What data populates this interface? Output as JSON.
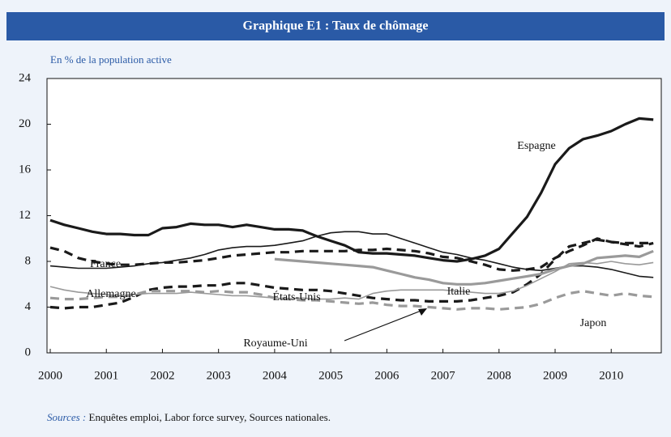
{
  "chart_data": {
    "type": "line",
    "title": "Graphique E1 : Taux de chômage",
    "subtitle": "En % de la population active",
    "source_label": "Sources :",
    "source": "Enquêtes emploi, Labor force survey, Sources nationales.",
    "x": [
      2000,
      2000.25,
      2000.5,
      2000.75,
      2001,
      2001.25,
      2001.5,
      2001.75,
      2002,
      2002.25,
      2002.5,
      2002.75,
      2003,
      2003.25,
      2003.5,
      2003.75,
      2004,
      2004.25,
      2004.5,
      2004.75,
      2005,
      2005.25,
      2005.5,
      2005.75,
      2006,
      2006.25,
      2006.5,
      2006.75,
      2007,
      2007.25,
      2007.5,
      2007.75,
      2008,
      2008.25,
      2008.5,
      2008.75,
      2009,
      2009.25,
      2009.5,
      2009.75,
      2010,
      2010.25,
      2010.5,
      2010.75
    ],
    "xlim": [
      2000,
      2010.95
    ],
    "xticks": [
      2000,
      2001,
      2002,
      2003,
      2004,
      2005,
      2006,
      2007,
      2008,
      2009,
      2010
    ],
    "ylim": [
      0,
      24
    ],
    "yticks": [
      0,
      4,
      8,
      12,
      16,
      20,
      24
    ],
    "grid": false,
    "series": [
      {
        "name": "Espagne",
        "color": "#1a1a1a",
        "thick": true,
        "dashed": false,
        "values": [
          11.6,
          11.2,
          10.9,
          10.6,
          10.4,
          10.4,
          10.3,
          10.3,
          10.9,
          11.0,
          11.3,
          11.2,
          11.2,
          11.0,
          11.2,
          11.0,
          10.8,
          10.8,
          10.7,
          10.2,
          9.8,
          9.4,
          8.8,
          8.7,
          8.7,
          8.6,
          8.5,
          8.3,
          8.1,
          8.0,
          8.2,
          8.5,
          9.1,
          10.5,
          11.9,
          14.0,
          16.5,
          17.9,
          18.7,
          19.0,
          19.4,
          20.0,
          20.5,
          20.4
        ]
      },
      {
        "name": "France",
        "color": "#1a1a1a",
        "thick": true,
        "dashed": true,
        "values": [
          9.2,
          8.9,
          8.3,
          8.0,
          7.8,
          7.7,
          7.7,
          7.8,
          7.9,
          7.9,
          8.0,
          8.1,
          8.3,
          8.5,
          8.6,
          8.7,
          8.8,
          8.8,
          8.9,
          8.9,
          8.9,
          8.9,
          9.0,
          9.0,
          9.1,
          9.0,
          8.9,
          8.7,
          8.4,
          8.3,
          8.0,
          7.7,
          7.3,
          7.2,
          7.3,
          7.5,
          8.3,
          8.9,
          9.4,
          10.0,
          9.7,
          9.5,
          9.3,
          9.6
        ]
      },
      {
        "name": "Allemagne",
        "color": "#1a1a1a",
        "thick": false,
        "dashed": false,
        "values": [
          7.6,
          7.5,
          7.4,
          7.4,
          7.4,
          7.5,
          7.6,
          7.8,
          7.9,
          8.1,
          8.3,
          8.6,
          9.0,
          9.2,
          9.3,
          9.3,
          9.4,
          9.6,
          9.8,
          10.2,
          10.5,
          10.6,
          10.6,
          10.4,
          10.4,
          10.0,
          9.6,
          9.2,
          8.8,
          8.6,
          8.3,
          8.1,
          7.8,
          7.5,
          7.3,
          7.2,
          7.4,
          7.6,
          7.6,
          7.5,
          7.3,
          7.0,
          6.7,
          6.6
        ]
      },
      {
        "name": "États-Unis",
        "color": "#1a1a1a",
        "thick": true,
        "dashed": true,
        "values": [
          4.0,
          3.9,
          4.0,
          4.0,
          4.2,
          4.4,
          4.9,
          5.5,
          5.7,
          5.8,
          5.8,
          5.9,
          5.9,
          6.1,
          6.1,
          5.9,
          5.7,
          5.6,
          5.5,
          5.5,
          5.4,
          5.2,
          5.0,
          4.8,
          4.7,
          4.6,
          4.6,
          4.5,
          4.5,
          4.5,
          4.6,
          4.8,
          5.0,
          5.3,
          6.0,
          6.9,
          8.2,
          9.3,
          9.6,
          9.9,
          9.7,
          9.6,
          9.6,
          9.6
        ]
      },
      {
        "name": "Italie",
        "color": "#9a9a9a",
        "thick": true,
        "dashed": false,
        "values": [
          null,
          null,
          null,
          null,
          null,
          null,
          null,
          null,
          null,
          null,
          null,
          null,
          null,
          null,
          null,
          null,
          8.2,
          8.1,
          8.0,
          7.9,
          7.8,
          7.7,
          7.6,
          7.5,
          7.2,
          6.9,
          6.6,
          6.4,
          6.1,
          6.0,
          6.0,
          6.1,
          6.3,
          6.5,
          6.7,
          6.9,
          7.3,
          7.6,
          7.8,
          8.3,
          8.4,
          8.5,
          8.4,
          8.9
        ]
      },
      {
        "name": "Royaume-Uni",
        "color": "#9a9a9a",
        "thick": false,
        "dashed": false,
        "values": [
          5.8,
          5.5,
          5.3,
          5.2,
          5.1,
          5.0,
          5.1,
          5.2,
          5.2,
          5.2,
          5.3,
          5.2,
          5.1,
          5.0,
          5.0,
          4.9,
          4.8,
          4.7,
          4.8,
          4.7,
          4.7,
          4.8,
          4.7,
          5.2,
          5.4,
          5.5,
          5.5,
          5.5,
          5.5,
          5.4,
          5.3,
          5.2,
          5.2,
          5.4,
          5.9,
          6.5,
          7.1,
          7.8,
          7.9,
          7.8,
          8.0,
          7.8,
          7.7,
          7.9
        ]
      },
      {
        "name": "Japon",
        "color": "#9a9a9a",
        "thick": true,
        "dashed": true,
        "values": [
          4.8,
          4.7,
          4.7,
          4.8,
          4.9,
          4.9,
          5.1,
          5.4,
          5.4,
          5.4,
          5.4,
          5.3,
          5.4,
          5.3,
          5.3,
          5.1,
          4.8,
          4.7,
          4.6,
          4.6,
          4.5,
          4.4,
          4.3,
          4.4,
          4.2,
          4.1,
          4.1,
          4.0,
          3.9,
          3.8,
          3.9,
          3.9,
          3.8,
          3.9,
          4.0,
          4.3,
          4.8,
          5.2,
          5.4,
          5.2,
          5.0,
          5.2,
          5.0,
          4.9
        ]
      }
    ]
  }
}
